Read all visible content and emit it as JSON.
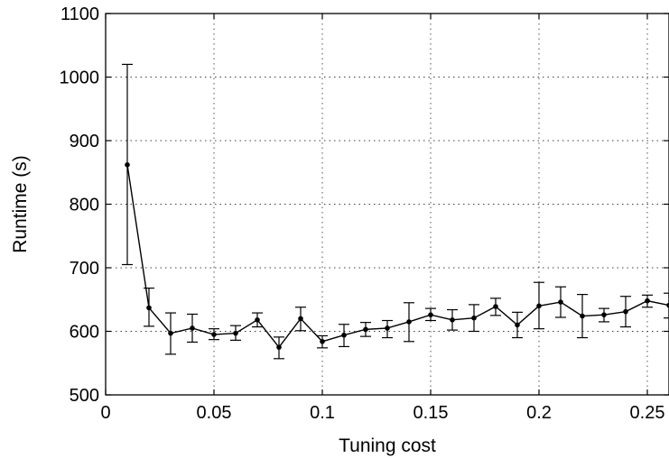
{
  "chart_data": {
    "type": "line",
    "title": "",
    "xlabel": "Tuning cost",
    "ylabel": "Runtime (s)",
    "xlim": [
      0,
      0.26
    ],
    "ylim": [
      500,
      1100
    ],
    "grid": true,
    "error_bars": true,
    "x_ticks": [
      {
        "value": 0,
        "label": "0"
      },
      {
        "value": 0.05,
        "label": "0.05"
      },
      {
        "value": 0.1,
        "label": "0.1"
      },
      {
        "value": 0.15,
        "label": "0.15"
      },
      {
        "value": 0.2,
        "label": "0.2"
      },
      {
        "value": 0.25,
        "label": "0.25"
      }
    ],
    "y_ticks": [
      {
        "value": 500,
        "label": "500"
      },
      {
        "value": 600,
        "label": "600"
      },
      {
        "value": 700,
        "label": "700"
      },
      {
        "value": 800,
        "label": "800"
      },
      {
        "value": 900,
        "label": "900"
      },
      {
        "value": 1000,
        "label": "1000"
      },
      {
        "value": 1100,
        "label": "1100"
      }
    ],
    "series": [
      {
        "color": "#000000",
        "points": [
          {
            "x": 0.01,
            "y": 862,
            "low": 705,
            "high": 1020
          },
          {
            "x": 0.02,
            "y": 637,
            "low": 608,
            "high": 668
          },
          {
            "x": 0.03,
            "y": 597,
            "low": 564,
            "high": 629
          },
          {
            "x": 0.04,
            "y": 605,
            "low": 583,
            "high": 627
          },
          {
            "x": 0.05,
            "y": 595,
            "low": 587,
            "high": 604
          },
          {
            "x": 0.06,
            "y": 597,
            "low": 586,
            "high": 609
          },
          {
            "x": 0.07,
            "y": 618,
            "low": 607,
            "high": 629
          },
          {
            "x": 0.08,
            "y": 575,
            "low": 557,
            "high": 591
          },
          {
            "x": 0.09,
            "y": 620,
            "low": 601,
            "high": 638
          },
          {
            "x": 0.1,
            "y": 584,
            "low": 574,
            "high": 593
          },
          {
            "x": 0.11,
            "y": 594,
            "low": 576,
            "high": 611
          },
          {
            "x": 0.12,
            "y": 603,
            "low": 592,
            "high": 614
          },
          {
            "x": 0.13,
            "y": 605,
            "low": 590,
            "high": 617
          },
          {
            "x": 0.14,
            "y": 615,
            "low": 584,
            "high": 645
          },
          {
            "x": 0.15,
            "y": 626,
            "low": 617,
            "high": 636
          },
          {
            "x": 0.16,
            "y": 618,
            "low": 602,
            "high": 634
          },
          {
            "x": 0.17,
            "y": 621,
            "low": 600,
            "high": 642
          },
          {
            "x": 0.18,
            "y": 639,
            "low": 625,
            "high": 652
          },
          {
            "x": 0.19,
            "y": 610,
            "low": 590,
            "high": 630
          },
          {
            "x": 0.2,
            "y": 640,
            "low": 604,
            "high": 677
          },
          {
            "x": 0.21,
            "y": 646,
            "low": 622,
            "high": 670
          },
          {
            "x": 0.22,
            "y": 624,
            "low": 590,
            "high": 658
          },
          {
            "x": 0.23,
            "y": 626,
            "low": 615,
            "high": 636
          },
          {
            "x": 0.24,
            "y": 631,
            "low": 607,
            "high": 655
          },
          {
            "x": 0.25,
            "y": 648,
            "low": 638,
            "high": 657
          },
          {
            "x": 0.26,
            "y": 641,
            "low": 621,
            "high": 660
          }
        ]
      }
    ]
  }
}
